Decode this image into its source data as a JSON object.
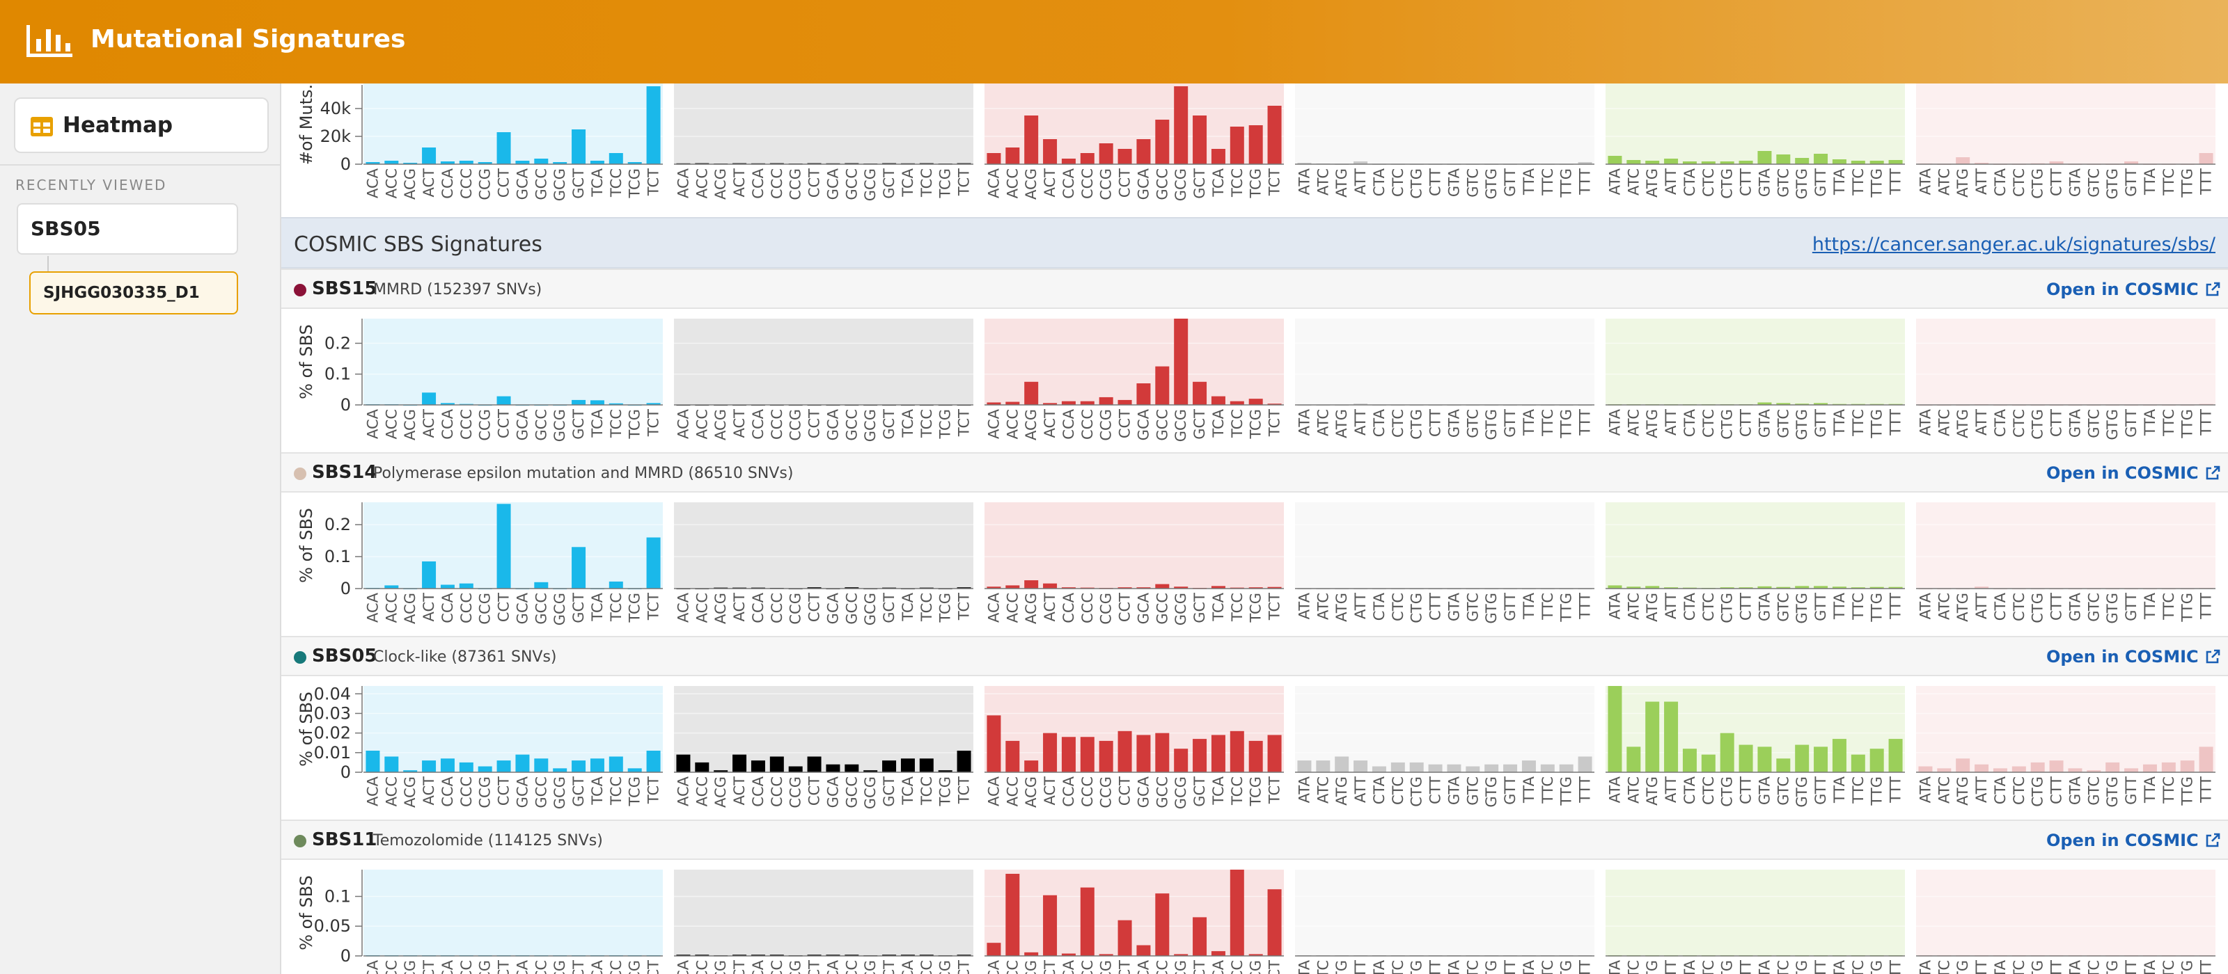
{
  "app": {
    "title": "Mutational Signatures"
  },
  "sidebar": {
    "heatmap_label": "Heatmap",
    "recently_viewed_label": "RECENTLY VIEWED",
    "items": [
      "SBS05",
      "SJHGG030335_D1"
    ]
  },
  "cosmic": {
    "title": "COSMIC SBS Signatures",
    "url": "https://cancer.sanger.ac.uk/signatures/sbs/"
  },
  "open_label": "Open in COSMIC",
  "colors": {
    "header": "#e08800",
    "groups": [
      "#1ab8ea",
      "#000000",
      "#d23a3a",
      "#c9c9c9",
      "#9bcf5a",
      "#eec4c4"
    ],
    "group_bg": [
      "#e3f5fc",
      "#e6e6e6",
      "#f9e3e3",
      "#f8f8f8",
      "#eff7e3",
      "#fcf0f0"
    ]
  },
  "contexts": [
    [
      "ACA",
      "ACC",
      "ACG",
      "ACT",
      "CCA",
      "CCC",
      "CCG",
      "CCT",
      "GCA",
      "GCC",
      "GCG",
      "GCT",
      "TCA",
      "TCC",
      "TCG",
      "TCT"
    ],
    [
      "ACA",
      "ACC",
      "ACG",
      "ACT",
      "CCA",
      "CCC",
      "CCG",
      "CCT",
      "GCA",
      "GCC",
      "GCG",
      "GCT",
      "TCA",
      "TCC",
      "TCG",
      "TCT"
    ],
    [
      "ACA",
      "ACC",
      "ACG",
      "ACT",
      "CCA",
      "CCC",
      "CCG",
      "CCT",
      "GCA",
      "GCC",
      "GCG",
      "GCT",
      "TCA",
      "TCC",
      "TCG",
      "TCT"
    ],
    [
      "ATA",
      "ATC",
      "ATG",
      "ATT",
      "CTA",
      "CTC",
      "CTG",
      "CTT",
      "GTA",
      "GTC",
      "GTG",
      "GTT",
      "TTA",
      "TTC",
      "TTG",
      "TTT"
    ],
    [
      "ATA",
      "ATC",
      "ATG",
      "ATT",
      "CTA",
      "CTC",
      "CTG",
      "CTT",
      "GTA",
      "GTC",
      "GTG",
      "GTT",
      "TTA",
      "TTC",
      "TTG",
      "TTT"
    ],
    [
      "ATA",
      "ATC",
      "ATG",
      "ATT",
      "CTA",
      "CTC",
      "CTG",
      "CTT",
      "GTA",
      "GTC",
      "GTG",
      "GTT",
      "TTA",
      "TTC",
      "TTG",
      "TTT"
    ]
  ],
  "chart_data": [
    {
      "type": "bar",
      "ylabel": "#of Muts.",
      "yticks": [
        "0",
        "20k",
        "40k"
      ],
      "tickvals": [
        0,
        20000,
        40000
      ],
      "ylim": [
        0,
        57000
      ],
      "groups": [
        [
          1500,
          2500,
          1000,
          12000,
          2000,
          2500,
          1500,
          23000,
          2500,
          4000,
          1500,
          25000,
          2500,
          8000,
          1500,
          56000
        ],
        [
          600,
          700,
          500,
          700,
          600,
          700,
          500,
          700,
          600,
          700,
          500,
          700,
          600,
          700,
          500,
          700
        ],
        [
          8000,
          12000,
          35000,
          18000,
          4000,
          8000,
          15000,
          11000,
          18000,
          32000,
          56000,
          35000,
          11000,
          27000,
          28000,
          42000
        ],
        [
          1000,
          500,
          300,
          2000,
          300,
          300,
          300,
          300,
          300,
          300,
          300,
          300,
          300,
          300,
          300,
          1500
        ],
        [
          6000,
          3000,
          2500,
          4000,
          2000,
          2000,
          2000,
          2500,
          9500,
          7000,
          4500,
          7500,
          3500,
          2500,
          2500,
          3000
        ],
        [
          500,
          300,
          5000,
          1000,
          300,
          300,
          600,
          2000,
          300,
          300,
          300,
          2000,
          300,
          300,
          300,
          8000
        ]
      ]
    },
    {
      "type": "bar",
      "name": "SBS15",
      "description": "MMRD (152397 SNVs)",
      "color": "#8b1238",
      "ylabel": "% of SBS",
      "yticks": [
        "0",
        "0.1",
        "0.2"
      ],
      "tickvals": [
        0,
        0.1,
        0.2
      ],
      "ylim": [
        0,
        0.28
      ],
      "groups": [
        [
          0.002,
          0.002,
          0.001,
          0.04,
          0.006,
          0.003,
          0.001,
          0.028,
          0.001,
          0.001,
          0.001,
          0.016,
          0.015,
          0.005,
          0.001,
          0.006
        ],
        [
          0.001,
          0.001,
          0.001,
          0.001,
          0.001,
          0.001,
          0.001,
          0.001,
          0.001,
          0.001,
          0.001,
          0.001,
          0.001,
          0.001,
          0.001,
          0.001
        ],
        [
          0.008,
          0.01,
          0.075,
          0.006,
          0.012,
          0.012,
          0.025,
          0.016,
          0.07,
          0.125,
          0.28,
          0.075,
          0.028,
          0.012,
          0.02,
          0.004
        ],
        [
          0.001,
          0.001,
          0.001,
          0.004,
          0.001,
          0.001,
          0.001,
          0.001,
          0.001,
          0.001,
          0.001,
          0.001,
          0.001,
          0.001,
          0.001,
          0.001
        ],
        [
          0.002,
          0.002,
          0.002,
          0.002,
          0.002,
          0.002,
          0.002,
          0.002,
          0.008,
          0.006,
          0.004,
          0.006,
          0.003,
          0.003,
          0.003,
          0.003
        ],
        [
          0.001,
          0.001,
          0.001,
          0.002,
          0.001,
          0.001,
          0.001,
          0.001,
          0.001,
          0.001,
          0.001,
          0.001,
          0.001,
          0.001,
          0.001,
          0.003
        ]
      ]
    },
    {
      "type": "bar",
      "name": "SBS14",
      "description": "Polymerase epsilon mutation and MMRD (86510 SNVs)",
      "color": "#d7c0b0",
      "ylabel": "% of SBS",
      "yticks": [
        "0",
        "0.1",
        "0.2"
      ],
      "tickvals": [
        0,
        0.1,
        0.2
      ],
      "ylim": [
        0,
        0.27
      ],
      "groups": [
        [
          0.002,
          0.01,
          0.001,
          0.085,
          0.012,
          0.016,
          0.001,
          0.265,
          0.001,
          0.02,
          0.001,
          0.13,
          0.001,
          0.022,
          0.001,
          0.16
        ],
        [
          0.001,
          0.001,
          0.003,
          0.003,
          0.003,
          0.002,
          0.001,
          0.004,
          0.001,
          0.004,
          0.001,
          0.003,
          0.001,
          0.003,
          0.001,
          0.004
        ],
        [
          0.006,
          0.01,
          0.026,
          0.016,
          0.004,
          0.003,
          0.002,
          0.004,
          0.004,
          0.014,
          0.006,
          0.002,
          0.008,
          0.003,
          0.004,
          0.005
        ],
        [
          0.001,
          0.001,
          0.001,
          0.001,
          0.001,
          0.001,
          0.001,
          0.001,
          0.001,
          0.001,
          0.001,
          0.001,
          0.001,
          0.001,
          0.001,
          0.001
        ],
        [
          0.01,
          0.006,
          0.008,
          0.004,
          0.003,
          0.002,
          0.004,
          0.004,
          0.007,
          0.005,
          0.008,
          0.008,
          0.006,
          0.004,
          0.005,
          0.005
        ],
        [
          0.001,
          0.001,
          0.001,
          0.006,
          0.001,
          0.001,
          0.001,
          0.001,
          0.001,
          0.001,
          0.001,
          0.001,
          0.001,
          0.001,
          0.001,
          0.002
        ]
      ]
    },
    {
      "type": "bar",
      "name": "SBS05",
      "description": "Clock-like (87361 SNVs)",
      "color": "#17797a",
      "ylabel": "% of SBS",
      "yticks": [
        "0",
        "0.01",
        "0.02",
        "0.03",
        "0.04"
      ],
      "tickvals": [
        0,
        0.01,
        0.02,
        0.03,
        0.04
      ],
      "ylim": [
        0,
        0.044
      ],
      "groups": [
        [
          0.011,
          0.008,
          0.001,
          0.006,
          0.007,
          0.005,
          0.003,
          0.006,
          0.009,
          0.007,
          0.002,
          0.006,
          0.007,
          0.008,
          0.002,
          0.011
        ],
        [
          0.009,
          0.005,
          0.001,
          0.009,
          0.006,
          0.008,
          0.003,
          0.008,
          0.004,
          0.004,
          0.001,
          0.006,
          0.007,
          0.007,
          0.001,
          0.011
        ],
        [
          0.029,
          0.016,
          0.006,
          0.02,
          0.018,
          0.018,
          0.016,
          0.021,
          0.019,
          0.02,
          0.012,
          0.017,
          0.019,
          0.021,
          0.016,
          0.019
        ],
        [
          0.006,
          0.006,
          0.008,
          0.006,
          0.003,
          0.005,
          0.005,
          0.004,
          0.004,
          0.003,
          0.004,
          0.004,
          0.006,
          0.004,
          0.004,
          0.008
        ],
        [
          0.044,
          0.013,
          0.036,
          0.036,
          0.012,
          0.009,
          0.02,
          0.014,
          0.013,
          0.007,
          0.014,
          0.013,
          0.017,
          0.009,
          0.012,
          0.017
        ],
        [
          0.003,
          0.002,
          0.007,
          0.004,
          0.002,
          0.003,
          0.005,
          0.006,
          0.002,
          0.001,
          0.005,
          0.002,
          0.004,
          0.005,
          0.006,
          0.013
        ]
      ]
    },
    {
      "type": "bar",
      "name": "SBS11",
      "description": "Temozolomide (114125 SNVs)",
      "color": "#6e8a5c",
      "ylabel": "% of SBS",
      "yticks": [
        "0",
        "0.05",
        "0.1"
      ],
      "tickvals": [
        0,
        0.05,
        0.1
      ],
      "ylim": [
        0,
        0.145
      ],
      "groups": [
        [
          0.001,
          0.001,
          0.001,
          0.001,
          0.001,
          0.001,
          0.001,
          0.001,
          0.001,
          0.001,
          0.001,
          0.001,
          0.001,
          0.001,
          0.001,
          0.001
        ],
        [
          0.002,
          0.002,
          0.001,
          0.002,
          0.002,
          0.002,
          0.001,
          0.002,
          0.002,
          0.002,
          0.001,
          0.002,
          0.002,
          0.002,
          0.001,
          0.002
        ],
        [
          0.022,
          0.138,
          0.006,
          0.102,
          0.004,
          0.115,
          0.003,
          0.06,
          0.018,
          0.105,
          0.003,
          0.065,
          0.008,
          0.145,
          0.003,
          0.112
        ],
        [
          0.001,
          0.001,
          0.001,
          0.001,
          0.001,
          0.001,
          0.001,
          0.001,
          0.001,
          0.001,
          0.001,
          0.001,
          0.001,
          0.001,
          0.001,
          0.001
        ],
        [
          0.001,
          0.001,
          0.001,
          0.001,
          0.001,
          0.001,
          0.001,
          0.001,
          0.001,
          0.001,
          0.001,
          0.001,
          0.001,
          0.001,
          0.001,
          0.001
        ],
        [
          0.001,
          0.001,
          0.001,
          0.001,
          0.001,
          0.001,
          0.001,
          0.001,
          0.001,
          0.001,
          0.001,
          0.001,
          0.001,
          0.001,
          0.001,
          0.001
        ]
      ]
    }
  ]
}
